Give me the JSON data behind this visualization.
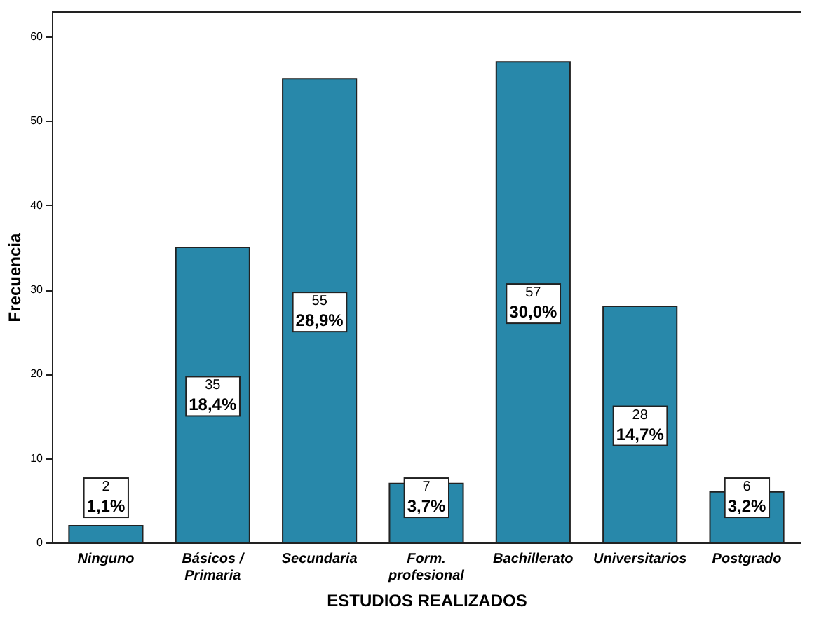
{
  "chart_data": {
    "type": "bar",
    "xlabel": "ESTUDIOS REALIZADOS",
    "ylabel": "Frecuencia",
    "categories": [
      "Ninguno",
      "Básicos /\nPrimaria",
      "Secundaria",
      "Form.\nprofesional",
      "Bachillerato",
      "Universitarios",
      "Postgrado"
    ],
    "values": [
      2,
      35,
      55,
      7,
      57,
      28,
      6
    ],
    "color": "#2888aa",
    "value_labels": [
      "2\n1,1%",
      "35\n18,4%",
      "55\n28,9%",
      "7\n3,7%",
      "57\n30,0%",
      "28\n14,7%",
      "6\n3,2%"
    ],
    "ylim": [
      0,
      63
    ],
    "yticks": [
      0,
      10,
      20,
      30,
      40,
      50,
      60
    ],
    "grid": false
  }
}
